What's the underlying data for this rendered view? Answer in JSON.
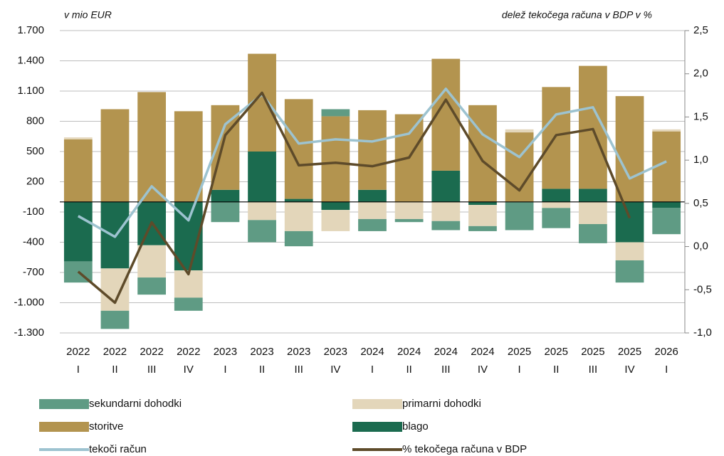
{
  "chart_data": {
    "type": "bar",
    "y_label": "v mio EUR",
    "y2_label": "delež tekočega računa v BDP v %",
    "categories": [
      [
        "2022",
        "I"
      ],
      [
        "2022",
        "II"
      ],
      [
        "2022",
        "III"
      ],
      [
        "2022",
        "IV"
      ],
      [
        "2023",
        "I"
      ],
      [
        "2023",
        "II"
      ],
      [
        "2023",
        "III"
      ],
      [
        "2023",
        "IV"
      ],
      [
        "2024",
        "I"
      ],
      [
        "2024",
        "II"
      ],
      [
        "2024",
        "III"
      ],
      [
        "2024",
        "IV"
      ],
      [
        "2025",
        "I"
      ],
      [
        "2025",
        "II"
      ],
      [
        "2025",
        "III"
      ],
      [
        "2025",
        "IV"
      ],
      [
        "2026",
        "I"
      ]
    ],
    "ylim": [
      -1300,
      1700
    ],
    "yticks": [
      {
        "value": -1300,
        "label": "-1.300"
      },
      {
        "value": -1000,
        "label": "-1.000"
      },
      -700,
      -400,
      -100,
      200,
      500,
      800,
      {
        "value": 1100,
        "label": "1.100"
      },
      {
        "value": 1400,
        "label": "1.400"
      },
      {
        "value": 1700,
        "label": "1.700"
      }
    ],
    "y2lim": [
      -1.0,
      2.5
    ],
    "y2ticks": [
      {
        "value": -1.0,
        "label": "-1,0"
      },
      {
        "value": -0.5,
        "label": "-0,5"
      },
      {
        "value": 0,
        "label": "0,0"
      },
      {
        "value": 0.5,
        "label": "0,5"
      },
      {
        "value": 1.0,
        "label": "1,0"
      },
      {
        "value": 1.5,
        "label": "1,5"
      },
      {
        "value": 2.0,
        "label": "2,0"
      },
      {
        "value": 2.5,
        "label": "2,5"
      }
    ],
    "grid": true,
    "series": [
      {
        "name": "sekundarni dohodki",
        "type": "bar",
        "color": "#5f9b84",
        "values": [
          -210,
          -180,
          -170,
          -130,
          -200,
          -220,
          -150,
          70,
          -120,
          -30,
          -90,
          -50,
          -280,
          -200,
          -190,
          -220,
          -260
        ]
      },
      {
        "name": "primarni dohodki",
        "type": "bar",
        "color": "#e3d6ba",
        "values": [
          20,
          -420,
          -320,
          -270,
          0,
          -180,
          -290,
          -210,
          -170,
          -170,
          -190,
          -210,
          30,
          -60,
          -220,
          -180,
          20
        ]
      },
      {
        "name": "storitve",
        "type": "bar",
        "color": "#b3944f",
        "values": [
          620,
          920,
          1090,
          900,
          840,
          970,
          990,
          850,
          790,
          870,
          1110,
          960,
          690,
          1010,
          1220,
          1050,
          700
        ]
      },
      {
        "name": "blago",
        "type": "bar",
        "color": "#1b6b4f",
        "values": [
          -590,
          -660,
          -430,
          -680,
          120,
          500,
          30,
          -80,
          120,
          0,
          310,
          -30,
          0,
          130,
          130,
          -400,
          -60
        ]
      },
      {
        "name": "tekoči račun",
        "type": "line",
        "color": "#9dc3d0",
        "values": [
          -140,
          -346,
          155,
          -183,
          770,
          1066,
          579,
          621,
          600,
          678,
          1122,
          670,
          445,
          868,
          939,
          233,
          402
        ]
      },
      {
        "name": "% tekočega računa v BDP",
        "type": "line",
        "axis": "y2",
        "color": "#5e4b2a",
        "values": [
          -0.29,
          -0.65,
          0.28,
          -0.32,
          1.29,
          1.78,
          0.94,
          0.97,
          0.93,
          1.03,
          1.7,
          0.99,
          0.65,
          1.29,
          1.36,
          0.33,
          null
        ]
      }
    ]
  }
}
